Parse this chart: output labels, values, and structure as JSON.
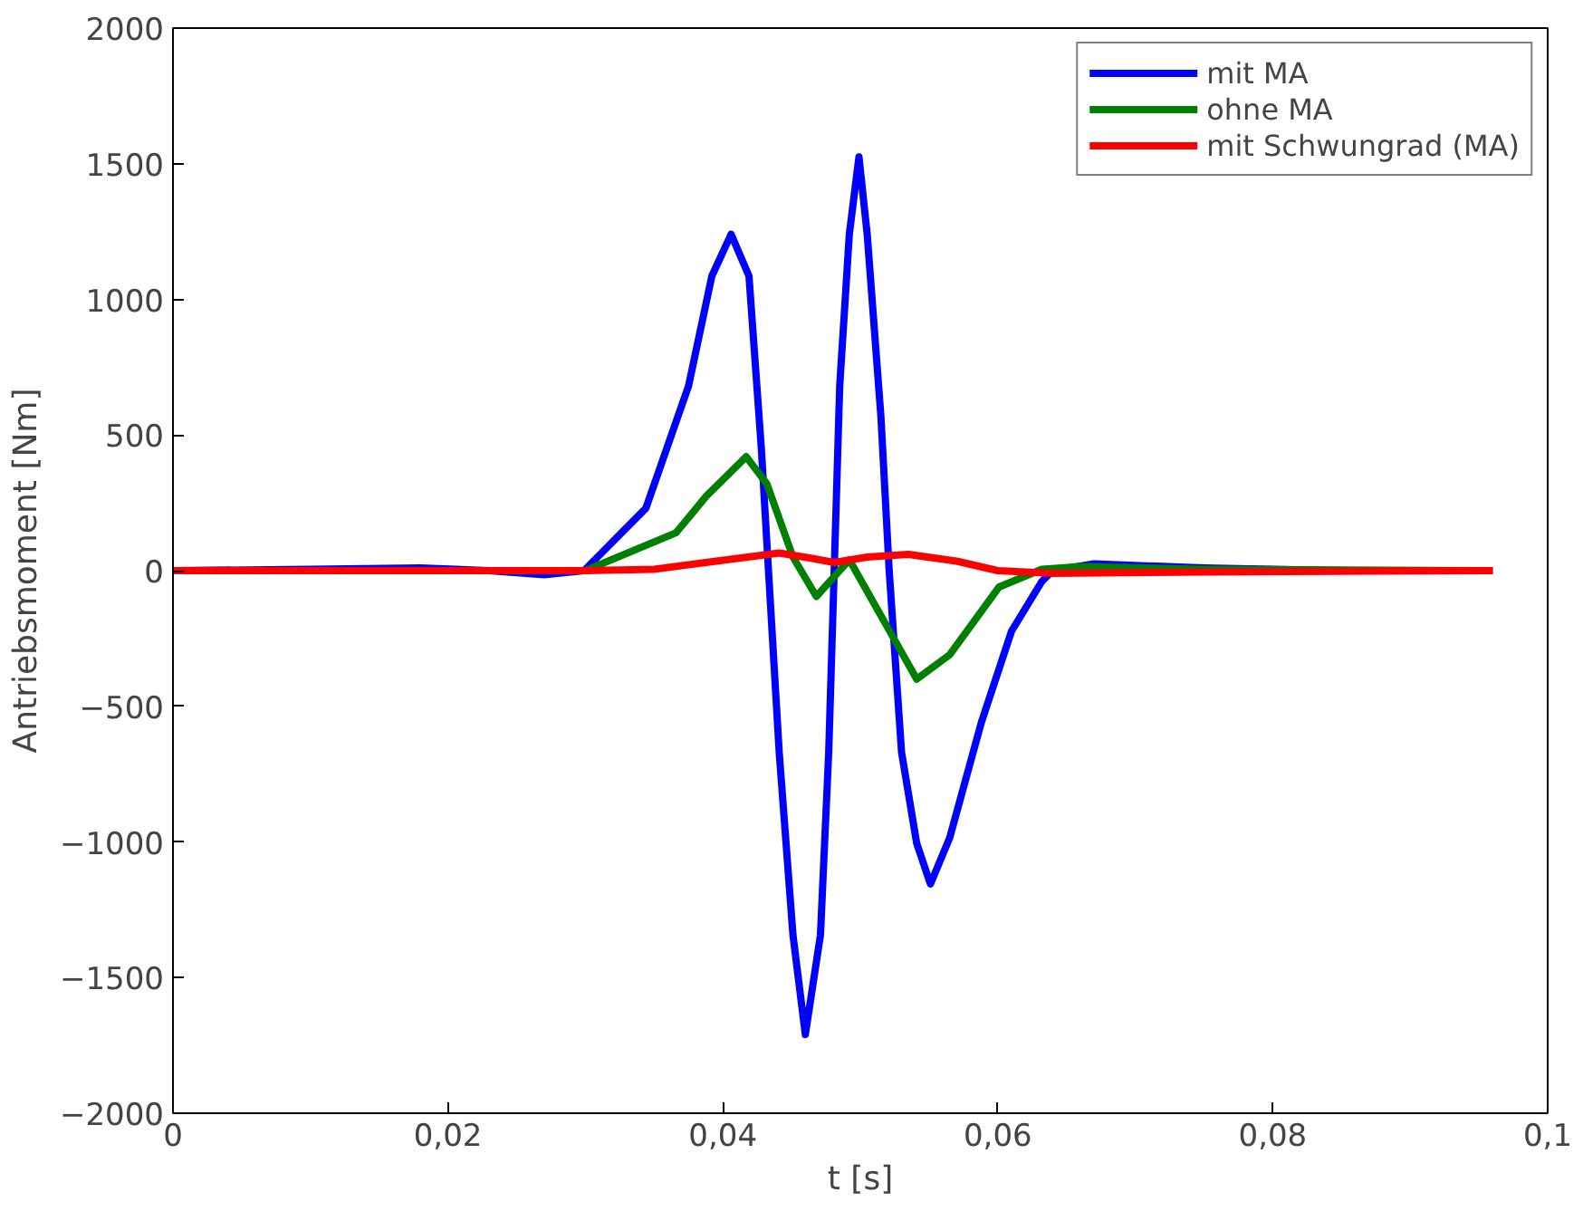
{
  "chart_data": {
    "type": "line",
    "xlabel": "t [s]",
    "ylabel": "Antriebsmoment [Nm]",
    "xlim": [
      0,
      0.1
    ],
    "ylim": [
      -2000,
      2000
    ],
    "xticks": [
      0,
      {
        "value": 0.02,
        "label": "0,02"
      },
      {
        "value": 0.04,
        "label": "0,04"
      },
      {
        "value": 0.06,
        "label": "0,06"
      },
      {
        "value": 0.08,
        "label": "0,08"
      },
      {
        "value": 0.1,
        "label": "0,1"
      }
    ],
    "yticks": [
      -2000,
      -1500,
      -1000,
      -500,
      0,
      500,
      1000,
      1500,
      2000
    ],
    "grid": false,
    "legend": "top right",
    "line_style": "solid",
    "marker": "none",
    "series": [
      {
        "name": "mit MA",
        "color": "#0000ff",
        "x": [
          0,
          0.01,
          0.018,
          0.023,
          0.027,
          0.0299,
          0.0344,
          0.0375,
          0.0392,
          0.0406,
          0.0419,
          0.0428,
          0.0435,
          0.0441,
          0.0451,
          0.046,
          0.0471,
          0.0477,
          0.0481,
          0.0485,
          0.0492,
          0.0499,
          0.0505,
          0.0515,
          0.0521,
          0.053,
          0.0541,
          0.0551,
          0.0565,
          0.0588,
          0.061,
          0.0632,
          0.064,
          0.067,
          0.075,
          0.085,
          0.096
        ],
        "values": [
          0,
          5,
          10,
          0,
          -15,
          0,
          230,
          680,
          1086,
          1240,
          1086,
          450,
          -155,
          -670,
          -1343,
          -1710,
          -1343,
          -670,
          0,
          680,
          1240,
          1525,
          1240,
          567,
          0,
          -670,
          -1005,
          -1155,
          -985,
          -560,
          -223,
          -40,
          0,
          25,
          10,
          0,
          0
        ]
      },
      {
        "name": "ohne MA",
        "color": "#008000",
        "x": [
          0,
          0.02,
          0.03,
          0.0366,
          0.0388,
          0.0417,
          0.0432,
          0.0451,
          0.0468,
          0.0492,
          0.0521,
          0.0541,
          0.0565,
          0.0601,
          0.0632,
          0.066,
          0.075,
          0.096
        ],
        "values": [
          0,
          0,
          0,
          140,
          275,
          420,
          320,
          50,
          -95,
          40,
          -220,
          -400,
          -310,
          -60,
          5,
          15,
          5,
          0
        ]
      },
      {
        "name": "mit Schwungrad (MA)",
        "color": "#ff0000",
        "x": [
          0,
          0.02,
          0.03,
          0.035,
          0.038,
          0.0441,
          0.0465,
          0.0481,
          0.0505,
          0.0535,
          0.057,
          0.06,
          0.064,
          0.075,
          0.096
        ],
        "values": [
          0,
          0,
          0,
          5,
          25,
          65,
          45,
          30,
          50,
          60,
          35,
          0,
          -10,
          -5,
          0
        ]
      }
    ]
  }
}
